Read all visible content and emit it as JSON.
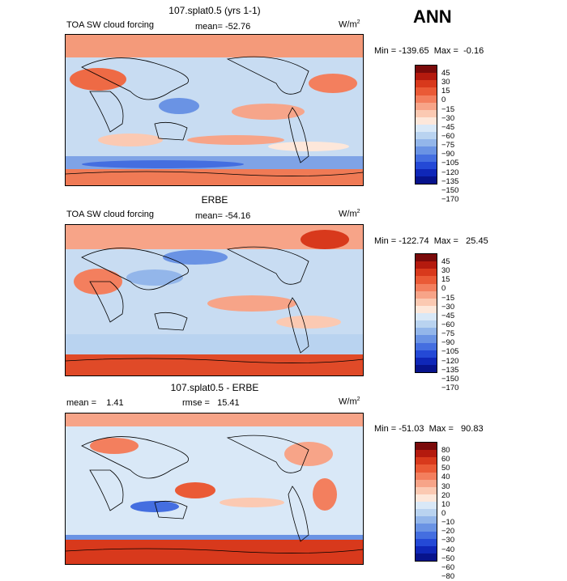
{
  "season": "ANN",
  "panels": [
    {
      "title": "107.splat0.5 (yrs 1-1)",
      "left_label": "TOA SW cloud forcing",
      "stat_label": "mean=",
      "stat_value": "-52.76",
      "units": "W/m",
      "units_exp": "2",
      "min_label": "Min =",
      "min_value": "-139.65",
      "max_label": "Max =",
      "max_value": "-0.16",
      "colorbar": {
        "labels": [
          "45",
          "30",
          "15",
          "0",
          "−15",
          "−30",
          "−45",
          "−60",
          "−75",
          "−90",
          "−105",
          "−120",
          "−135",
          "−150",
          "−170"
        ],
        "colors": [
          "#7a0a0a",
          "#b41a0e",
          "#d8391c",
          "#ea5a36",
          "#f37f5e",
          "#f7a488",
          "#fbc9b2",
          "#fde7da",
          "#d9e8f7",
          "#b9d3f0",
          "#93b6ea",
          "#6a93e4",
          "#446ee0",
          "#2449d6",
          "#0f27b8",
          "#07138c"
        ]
      }
    },
    {
      "title": "ERBE",
      "left_label": "TOA SW cloud forcing",
      "stat_label": "mean=",
      "stat_value": "-54.16",
      "units": "W/m",
      "units_exp": "2",
      "min_label": "Min =",
      "min_value": "-122.74",
      "max_label": "Max =",
      "max_value": "25.45",
      "colorbar": {
        "labels": [
          "45",
          "30",
          "15",
          "0",
          "−15",
          "−30",
          "−45",
          "−60",
          "−75",
          "−90",
          "−105",
          "−120",
          "−135",
          "−150",
          "−170"
        ],
        "colors": [
          "#7a0a0a",
          "#b41a0e",
          "#d8391c",
          "#ea5a36",
          "#f37f5e",
          "#f7a488",
          "#fbc9b2",
          "#fde7da",
          "#d9e8f7",
          "#b9d3f0",
          "#93b6ea",
          "#6a93e4",
          "#446ee0",
          "#2449d6",
          "#0f27b8",
          "#07138c"
        ]
      }
    },
    {
      "title": "107.splat0.5 - ERBE",
      "mean_label": "mean =",
      "mean_value": "1.41",
      "rmse_label": "rmse =",
      "rmse_value": "15.41",
      "units": "W/m",
      "units_exp": "2",
      "min_label": "Min =",
      "min_value": "-51.03",
      "max_label": "Max =",
      "max_value": "90.83",
      "colorbar": {
        "labels": [
          "80",
          "60",
          "50",
          "40",
          "30",
          "20",
          "10",
          "0",
          "−10",
          "−20",
          "−30",
          "−40",
          "−50",
          "−60",
          "−80"
        ],
        "colors": [
          "#7a0a0a",
          "#b41a0e",
          "#d8391c",
          "#ea5a36",
          "#f37f5e",
          "#f7a488",
          "#fbc9b2",
          "#fde7da",
          "#d9e8f7",
          "#b9d3f0",
          "#93b6ea",
          "#6a93e4",
          "#446ee0",
          "#2449d6",
          "#0f27b8",
          "#07138c"
        ]
      }
    }
  ]
}
